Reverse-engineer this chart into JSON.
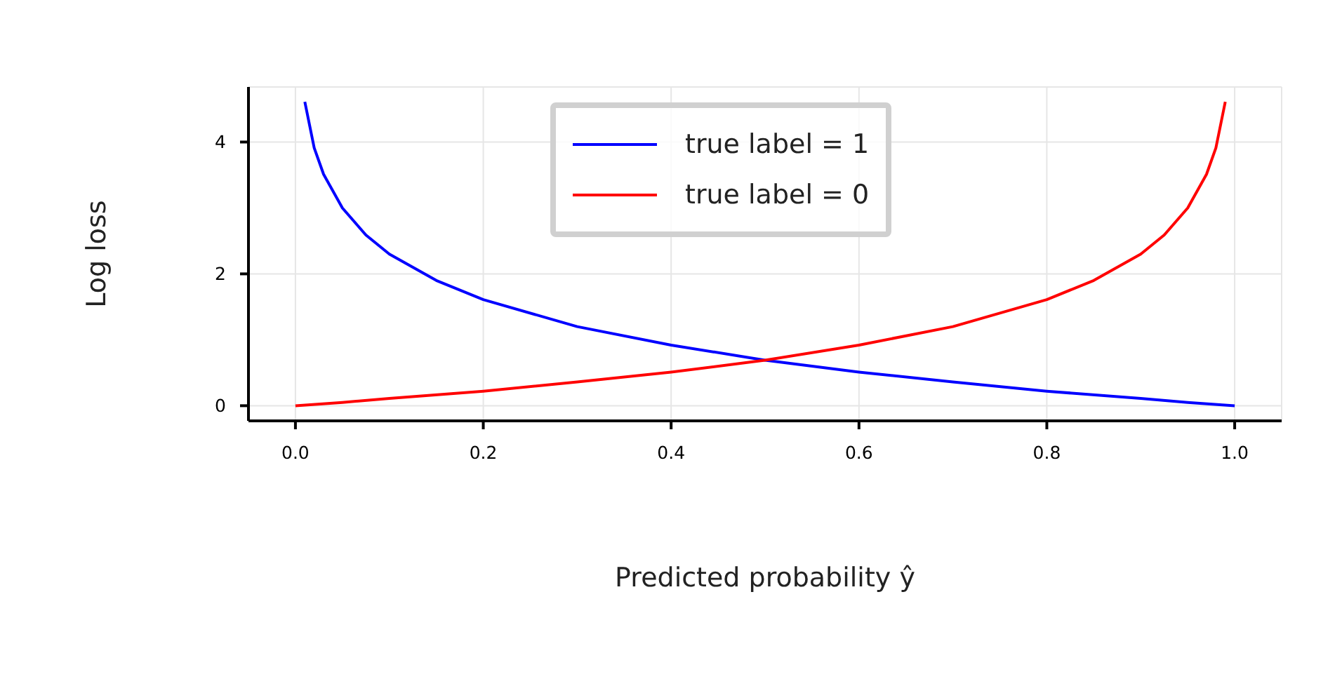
{
  "chart_data": {
    "type": "line",
    "xlabel": "Predicted probability ŷ",
    "ylabel": "Log loss",
    "xlim": [
      -0.05,
      1.05
    ],
    "xticks": [
      {
        "value": 0,
        "label": "0.0"
      },
      0.2,
      0.4,
      0.6,
      0.8,
      {
        "value": 1,
        "label": "1.0"
      }
    ],
    "ylim": [
      -0.23,
      4.835
    ],
    "yticks": [
      0,
      2,
      4
    ],
    "grid": true,
    "legend": "top",
    "marker": "none",
    "line_style": "solid",
    "series": [
      {
        "name": "true label = 1",
        "color": "#0000ff",
        "x": [
          0.01,
          0.02,
          0.03,
          0.05,
          0.075,
          0.1,
          0.15,
          0.2,
          0.3,
          0.4,
          0.5,
          0.6,
          0.7,
          0.8,
          0.9,
          0.95,
          1.0
        ],
        "values": [
          4.61,
          3.91,
          3.51,
          3.0,
          2.59,
          2.3,
          1.9,
          1.61,
          1.2,
          0.92,
          0.69,
          0.51,
          0.36,
          0.22,
          0.11,
          0.05,
          0
        ]
      },
      {
        "name": "true label = 0",
        "color": "#ff0000",
        "x": [
          0,
          0.05,
          0.1,
          0.2,
          0.3,
          0.4,
          0.5,
          0.6,
          0.7,
          0.8,
          0.85,
          0.9,
          0.925,
          0.95,
          0.97,
          0.98,
          0.99
        ],
        "values": [
          0,
          0.05,
          0.11,
          0.22,
          0.36,
          0.51,
          0.69,
          0.92,
          1.2,
          1.61,
          1.9,
          2.3,
          2.59,
          3.0,
          3.51,
          3.91,
          4.61
        ]
      }
    ]
  }
}
